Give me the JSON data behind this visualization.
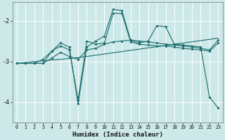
{
  "xlabel": "Humidex (Indice chaleur)",
  "bg_color": "#cce8e8",
  "line_color": "#1a6b6b",
  "grid_color": "#b0d8d8",
  "xlim": [
    -0.5,
    23.5
  ],
  "ylim": [
    -4.5,
    -1.55
  ],
  "yticks": [
    -4,
    -3,
    -2
  ],
  "xticks": [
    0,
    1,
    2,
    3,
    4,
    5,
    6,
    7,
    8,
    9,
    10,
    11,
    12,
    13,
    14,
    15,
    16,
    17,
    18,
    19,
    20,
    21,
    22,
    23
  ],
  "line1_x": [
    0,
    1,
    2,
    3,
    4,
    5,
    6,
    7,
    8,
    9,
    10,
    11,
    12,
    13,
    14,
    15,
    16,
    17,
    18,
    19,
    20,
    21,
    22,
    23
  ],
  "line1_y": [
    -3.05,
    -3.05,
    -3.05,
    -3.05,
    -2.75,
    -2.62,
    -2.72,
    -3.95,
    -2.5,
    -2.58,
    -2.55,
    -1.82,
    -1.82,
    -2.52,
    -2.58,
    -2.6,
    -2.62,
    -2.62,
    -2.65,
    -2.68,
    -2.7,
    -2.72,
    -2.75,
    -2.55
  ],
  "line2_x": [
    0,
    1,
    2,
    3,
    4,
    5,
    6,
    7,
    8,
    9,
    10,
    11,
    12,
    13,
    14,
    15,
    16,
    17,
    18,
    19,
    20,
    21,
    22,
    23
  ],
  "line2_y": [
    -3.05,
    -3.05,
    -3.05,
    -2.95,
    -2.75,
    -2.55,
    -2.65,
    -4.05,
    -2.65,
    -2.5,
    -2.38,
    -1.72,
    -1.75,
    -2.48,
    -2.55,
    -2.5,
    -2.12,
    -2.15,
    -2.58,
    -2.6,
    -2.62,
    -2.65,
    -3.88,
    -4.15
  ],
  "line3_x": [
    0,
    1,
    2,
    3,
    4,
    5,
    6,
    7,
    8,
    9,
    10,
    11,
    12,
    13,
    14,
    15,
    16,
    17,
    18,
    19,
    20,
    21,
    22,
    23
  ],
  "line3_y": [
    -3.05,
    -3.05,
    -3.05,
    -3.05,
    -2.92,
    -2.78,
    -2.88,
    -2.95,
    -2.72,
    -2.68,
    -2.58,
    -2.52,
    -2.5,
    -2.48,
    -2.5,
    -2.52,
    -2.55,
    -2.58,
    -2.6,
    -2.62,
    -2.65,
    -2.68,
    -2.72,
    -2.48
  ],
  "line4_x": [
    0,
    1,
    2,
    3,
    4,
    5,
    6,
    7,
    8,
    9,
    10,
    11,
    12,
    13,
    14,
    15,
    16,
    17,
    18,
    19,
    20,
    21,
    22,
    23
  ],
  "line4_y": [
    -3.05,
    -3.03,
    -3.01,
    -2.99,
    -2.97,
    -2.95,
    -2.93,
    -2.91,
    -2.88,
    -2.85,
    -2.82,
    -2.79,
    -2.76,
    -2.73,
    -2.7,
    -2.67,
    -2.64,
    -2.61,
    -2.58,
    -2.55,
    -2.52,
    -2.49,
    -2.46,
    -2.43
  ]
}
